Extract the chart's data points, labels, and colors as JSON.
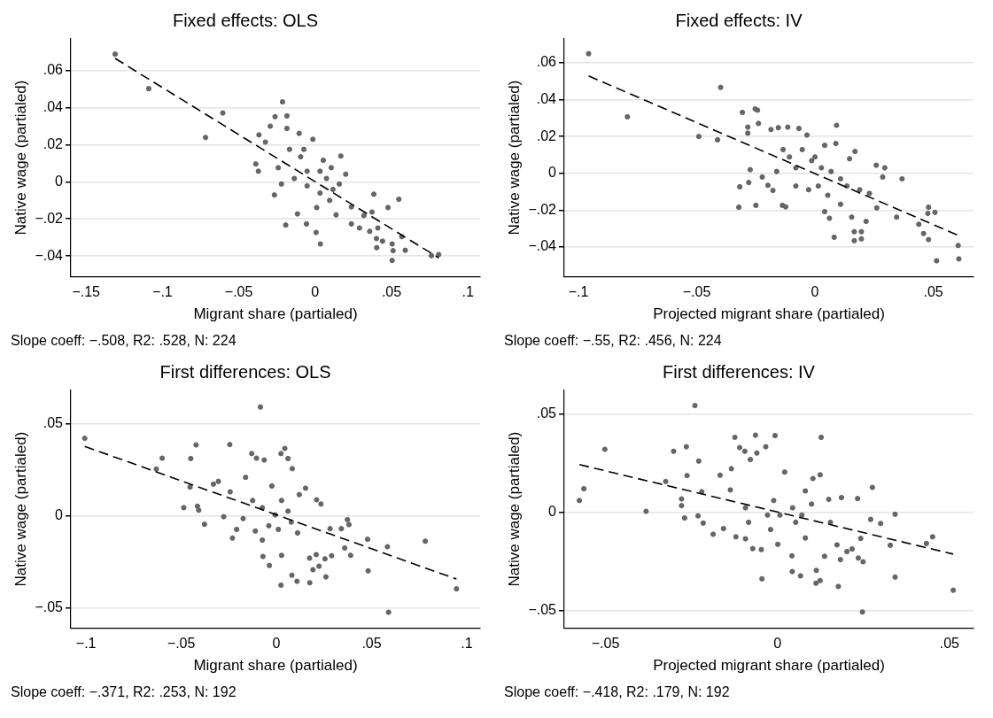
{
  "chart_data": [
    {
      "type": "scatter",
      "title": "Fixed effects: OLS",
      "xlabel": "Migrant share (partialed)",
      "ylabel": "Native wage (partialed)",
      "annotations": [
        "Slope coeff: −.508, R2: .528, N: 224"
      ],
      "grid": "y",
      "xlim": [
        -0.16,
        0.108
      ],
      "ylim": [
        -0.051,
        0.077
      ],
      "xticks": [
        {
          "value": -0.15,
          "label": "−.15"
        },
        {
          "value": -0.1,
          "label": "−.1"
        },
        {
          "value": -0.05,
          "label": "−.05"
        },
        {
          "value": 0,
          "label": "0"
        },
        {
          "value": 0.05,
          "label": ".05"
        },
        {
          "value": 0.1,
          "label": ".1"
        }
      ],
      "yticks": [
        {
          "value": -0.04,
          "label": "−.04"
        },
        {
          "value": -0.02,
          "label": "−.02"
        },
        {
          "value": 0,
          "label": "0"
        },
        {
          "value": 0.02,
          "label": ".02"
        },
        {
          "value": 0.04,
          "label": ".04"
        },
        {
          "value": 0.06,
          "label": ".06"
        }
      ],
      "series": [
        {
          "type": "scatter",
          "color": "#666666",
          "marker": "circle",
          "x": [
            -0.131,
            -0.109,
            -0.0605,
            -0.0718,
            -0.0389,
            -0.0372,
            -0.0368,
            -0.0326,
            -0.0214,
            -0.0263,
            -0.0185,
            -0.0185,
            -0.0294,
            -0.0105,
            -0.0015,
            -0.0267,
            -0.0193,
            -0.0116,
            -0.0057,
            0.0006,
            0.0034,
            0.0168,
            0.02,
            0.0237,
            0.0237,
            0.029,
            0.0319,
            0.0372,
            0.0357,
            0.041,
            0.0401,
            0.0403,
            0.0384,
            0.0441,
            0.0477,
            0.0548,
            0.0504,
            0.051,
            0.0504,
            0.059,
            0.0567,
            0.0761,
            0.0809,
            -0.0095,
            0.0032,
            0.0074,
            -0.0053,
            0.0116,
            -0.0137,
            0.0032,
            0.0137,
            -0.0053,
            0.0053,
            -0.0242,
            -0.0221,
            0.0095,
            0.001,
            0.0158,
            -0.0168,
            -0.0074,
            0.0105
          ],
          "values": [
            0.0688,
            0.0502,
            0.0371,
            0.0239,
            0.0096,
            0.0057,
            0.0253,
            0.0214,
            0.0431,
            0.0351,
            0.0355,
            0.0288,
            0.03,
            0.0261,
            0.0229,
            -0.0071,
            -0.0233,
            -0.0173,
            -0.0227,
            -0.0273,
            -0.0335,
            0.0139,
            0.0041,
            -0.0135,
            -0.0227,
            -0.0249,
            -0.0182,
            -0.0163,
            -0.0267,
            -0.0249,
            -0.0306,
            -0.0355,
            -0.0067,
            -0.032,
            -0.0139,
            -0.0094,
            -0.0335,
            -0.0371,
            -0.0424,
            -0.0369,
            -0.0296,
            -0.0398,
            -0.0392,
            0.0135,
            0.0057,
            0.0018,
            -0.0022,
            -0.0041,
            0.0018,
            -0.0061,
            -0.0178,
            0.0057,
            0.0116,
            0.0076,
            -0.0012,
            -0.01,
            -0.0139,
            -0.0012,
            0.0175,
            0.0175,
            0.0076
          ]
        },
        {
          "type": "line",
          "color": "#000000",
          "marker": "none",
          "line_style": "dashed",
          "x": [
            -0.131,
            0.0809
          ],
          "values": [
            0.0665,
            -0.041
          ]
        }
      ]
    },
    {
      "type": "scatter",
      "title": "Fixed effects: IV",
      "xlabel": "Projected migrant share (partialed)",
      "ylabel": "Native wage (partialed)",
      "annotations": [
        "Slope coeff: −.55, R2: .456, N: 224"
      ],
      "grid": "y",
      "xlim": [
        -0.106,
        0.067
      ],
      "ylim": [
        -0.056,
        0.073
      ],
      "xticks": [
        {
          "value": -0.1,
          "label": "−.1"
        },
        {
          "value": -0.05,
          "label": "−.05"
        },
        {
          "value": 0,
          "label": "0"
        },
        {
          "value": 0.05,
          "label": ".05"
        }
      ],
      "yticks": [
        {
          "value": -0.04,
          "label": "−.04"
        },
        {
          "value": -0.02,
          "label": "−.02"
        },
        {
          "value": 0,
          "label": "0"
        },
        {
          "value": 0.02,
          "label": ".02"
        },
        {
          "value": 0.04,
          "label": ".04"
        },
        {
          "value": 0.06,
          "label": ".06"
        }
      ],
      "series": [
        {
          "type": "scatter",
          "color": "#666666",
          "marker": "circle",
          "x": [
            -0.0957,
            -0.0793,
            -0.0399,
            -0.0491,
            -0.0412,
            -0.0307,
            -0.0284,
            -0.0284,
            -0.0253,
            -0.0243,
            -0.0239,
            -0.0318,
            -0.0322,
            -0.028,
            -0.0274,
            -0.025,
            -0.0223,
            -0.0199,
            -0.0178,
            -0.0138,
            -0.0124,
            -0.0186,
            -0.0155,
            -0.0115,
            -0.0068,
            -0.0034,
            0.0091,
            0.0088,
            0.0041,
            0.0081,
            0.0061,
            0.0041,
            0.0169,
            0.0146,
            0.0155,
            0.0166,
            0.0166,
            0.0196,
            0.0196,
            0.0216,
            0.0259,
            0.0286,
            0.0295,
            0.0261,
            0.0345,
            0.0368,
            0.0439,
            0.0459,
            0.048,
            0.0477,
            0.048,
            0.0507,
            0.0514,
            0.0605,
            0.0608,
            -0.0108,
            -0.0081,
            -0.0054,
            -0.0014,
            0.0027,
            0.0068,
            -0.0081,
            -0.0027,
            0.0014,
            0.0054,
            0.0108,
            0.0135,
            0.0189,
            0.023,
            -0.0162,
            -0.0135,
            0,
            0.0108
          ],
          "values": [
            0.065,
            0.0307,
            0.0467,
            0.02,
            0.0182,
            0.0331,
            0.0251,
            0.0218,
            0.035,
            0.0343,
            0.0271,
            -0.0073,
            -0.0184,
            -0.005,
            0.002,
            -0.0174,
            -0.002,
            -0.0065,
            -0.0093,
            -0.0174,
            -0.0182,
            0.0238,
            0.0248,
            0.0251,
            0.0244,
            0.0208,
            0.0261,
            0.0162,
            0.0152,
            -0.0347,
            -0.0244,
            -0.0208,
            0.0119,
            0.0079,
            -0.0238,
            -0.0317,
            -0.0366,
            -0.0317,
            -0.0356,
            -0.0261,
            0.0044,
            -0.002,
            0.003,
            -0.0188,
            -0.0238,
            -0.003,
            -0.0277,
            -0.0327,
            -0.0184,
            -0.0218,
            -0.036,
            -0.0212,
            -0.0475,
            -0.0392,
            -0.0465,
            0.0089,
            0.003,
            0.0129,
            0.0069,
            0.003,
            0.001,
            -0.0069,
            -0.0089,
            -0.0069,
            -0.0119,
            -0.003,
            -0.0069,
            -0.0089,
            -0.0109,
            0.001,
            0.0129,
            0.0089,
            -0.0168
          ]
        },
        {
          "type": "line",
          "color": "#000000",
          "marker": "none",
          "line_style": "dashed",
          "x": [
            -0.0957,
            0.0605
          ],
          "values": [
            0.0529,
            -0.0337
          ]
        }
      ]
    },
    {
      "type": "scatter",
      "title": "First differences: OLS",
      "xlabel": "Migrant share (partialed)",
      "ylabel": "Native wage (partialed)",
      "annotations": [
        "Slope coeff: −.371, R2: .253, N: 192"
      ],
      "grid": "y",
      "xlim": [
        -0.108,
        0.107
      ],
      "ylim": [
        -0.061,
        0.068
      ],
      "xticks": [
        {
          "value": -0.1,
          "label": "−.1"
        },
        {
          "value": -0.05,
          "label": "−.05"
        },
        {
          "value": 0,
          "label": "0"
        },
        {
          "value": 0.05,
          "label": ".05"
        },
        {
          "value": 0.1,
          "label": ".1"
        }
      ],
      "yticks": [
        {
          "value": -0.05,
          "label": "−.05"
        },
        {
          "value": 0,
          "label": "0"
        },
        {
          "value": 0.05,
          "label": ".05"
        }
      ],
      "series": [
        {
          "type": "scatter",
          "color": "#666666",
          "marker": "circle",
          "x": [
            -0.1007,
            -0.0631,
            -0.06,
            -0.045,
            -0.0422,
            -0.0454,
            -0.0487,
            -0.0415,
            -0.0408,
            -0.0378,
            -0.0331,
            -0.0305,
            -0.0245,
            -0.0243,
            -0.0231,
            -0.0162,
            -0.013,
            -0.0105,
            -0.0064,
            -0.0084,
            -0.0071,
            -0.0037,
            0.0024,
            0.0027,
            0.0024,
            0.0044,
            0.0061,
            0.0083,
            0.0081,
            0.0108,
            0.0175,
            0.0174,
            0.0192,
            0.0209,
            0.0224,
            0.026,
            0.0255,
            0.029,
            0.0282,
            0.0341,
            0.0373,
            0.0381,
            0.0359,
            0.039,
            0.0479,
            0.0482,
            0.0583,
            0.0589,
            0.0782,
            0.0946,
            0.0234,
            0.0211,
            0.0153,
            0.012,
            0.0061,
            -0.0007,
            -0.004,
            0.001,
            -0.0074,
            -0.0125,
            -0.0175,
            -0.0024,
            0.0027,
            0.0078,
            0.0111,
            -0.0074,
            -0.0111,
            -0.0277,
            -0.0209
          ],
          "values": [
            0.042,
            0.0253,
            0.0312,
            0.031,
            0.0384,
            0.0155,
            0.0043,
            0.0051,
            0.0029,
            -0.0047,
            0.0171,
            0.0186,
            0.0386,
            0.0129,
            -0.0122,
            0.0208,
            0.0337,
            0.0312,
            0.0302,
            0.059,
            -0.0222,
            -0.0271,
            -0.0378,
            -0.0216,
            0.0337,
            0.0365,
            0.031,
            0.0255,
            -0.0324,
            -0.0357,
            -0.0365,
            -0.0231,
            -0.0294,
            -0.0212,
            -0.0275,
            -0.0333,
            -0.0235,
            -0.0218,
            -0.0071,
            -0.0071,
            -0.0022,
            -0.0049,
            -0.0176,
            -0.0216,
            -0.0129,
            -0.03,
            -0.0169,
            -0.0525,
            -0.0139,
            -0.0398,
            0.0063,
            0.0086,
            0.0149,
            0.0114,
            0.0024,
            0.0004,
            -0.0055,
            -0.0075,
            0.0043,
            0.0082,
            -0.0016,
            0.0161,
            0.0082,
            -0.0035,
            -0.0094,
            -0.0133,
            -0.0084,
            -0.0006,
            -0.0075
          ]
        },
        {
          "type": "line",
          "color": "#000000",
          "marker": "none",
          "line_style": "dashed",
          "x": [
            -0.1007,
            0.0946
          ],
          "values": [
            0.0376,
            -0.0345
          ]
        }
      ]
    },
    {
      "type": "scatter",
      "title": "First differences: IV",
      "xlabel": "Projected migrant share (partialed)",
      "ylabel": "Native wage (partialed)",
      "annotations": [
        "Slope coeff: −.418, R2: .179, N: 192"
      ],
      "grid": "y",
      "xlim": [
        -0.062,
        0.057
      ],
      "ylim": [
        -0.059,
        0.062
      ],
      "xticks": [
        {
          "value": -0.05,
          "label": "−.05"
        },
        {
          "value": 0,
          "label": "0"
        },
        {
          "value": 0.05,
          "label": ".05"
        }
      ],
      "yticks": [
        {
          "value": -0.05,
          "label": "−.05"
        },
        {
          "value": 0,
          "label": "0"
        },
        {
          "value": 0.05,
          "label": ".05"
        }
      ],
      "series": [
        {
          "type": "scatter",
          "color": "#666666",
          "marker": "circle",
          "x": [
            -0.0576,
            -0.0563,
            -0.0502,
            -0.0382,
            -0.0325,
            -0.0302,
            -0.0265,
            -0.0263,
            -0.024,
            -0.0229,
            -0.0279,
            -0.0279,
            -0.027,
            -0.0231,
            -0.022,
            -0.0216,
            -0.0187,
            -0.0167,
            -0.0157,
            -0.0134,
            -0.0137,
            -0.0124,
            -0.011,
            -0.0095,
            -0.0079,
            -0.0064,
            -0.006,
            -0.0034,
            -0.0007,
            0.0021,
            -0.0072,
            -0.0045,
            -0.0047,
            0.0001,
            0.0042,
            0.0043,
            0.0067,
            0.0081,
            0.0081,
            0.0113,
            0.0112,
            0.0124,
            0.0103,
            0.0124,
            0.0127,
            0.0137,
            0.0177,
            0.0173,
            0.0183,
            0.0202,
            0.0217,
            0.0233,
            0.0235,
            0.0249,
            0.0247,
            0.0242,
            0.0276,
            0.0271,
            0.03,
            0.0328,
            0.0342,
            0.0342,
            0.0433,
            0.0451,
            0.0511,
            0.0149,
            0.0186,
            0.0099,
            0.0053,
            0.0007,
            -0.0029,
            -0.0011,
            0.0044,
            -0.0093,
            -0.0084,
            -0.0121,
            -0.0093,
            -0.002,
            0.0071,
            0.0154
          ],
          "values": [
            0.0059,
            0.0119,
            0.032,
            0.0004,
            0.0156,
            0.031,
            0.0333,
            0.0186,
            0.0543,
            0.026,
            0.0067,
            0.0033,
            -0.003,
            -0.0019,
            0.0104,
            -0.0056,
            -0.0113,
            0.0188,
            -0.0084,
            0.0221,
            0.0113,
            0.0381,
            0.0329,
            0.031,
            0.0268,
            0.0392,
            0.0301,
            0.0333,
            0.039,
            0.0204,
            -0.0186,
            -0.034,
            -0.0191,
            -0.0164,
            -0.0223,
            -0.0303,
            -0.0325,
            -0.0132,
            0.0108,
            -0.0297,
            -0.0362,
            -0.0349,
            0.0171,
            0.019,
            0.0381,
            -0.0225,
            -0.0379,
            -0.0167,
            -0.0242,
            -0.0201,
            -0.0188,
            0.0069,
            -0.0234,
            -0.0253,
            -0.0509,
            -0.0134,
            0.0126,
            -0.0037,
            -0.0058,
            -0.0169,
            -0.0011,
            -0.0331,
            -0.016,
            -0.0126,
            -0.0398,
            0.0065,
            0.0074,
            0.0041,
            -0.0052,
            -0.0015,
            -0.0015,
            0.0059,
            0.0022,
            0.0022,
            -0.0052,
            -0.0126,
            -0.0136,
            -0.0089,
            -0.0015,
            -0.0052
          ]
        },
        {
          "type": "line",
          "color": "#000000",
          "marker": "none",
          "line_style": "dashed",
          "x": [
            -0.0576,
            0.0511
          ],
          "values": [
            0.0242,
            -0.0214
          ]
        }
      ]
    }
  ]
}
